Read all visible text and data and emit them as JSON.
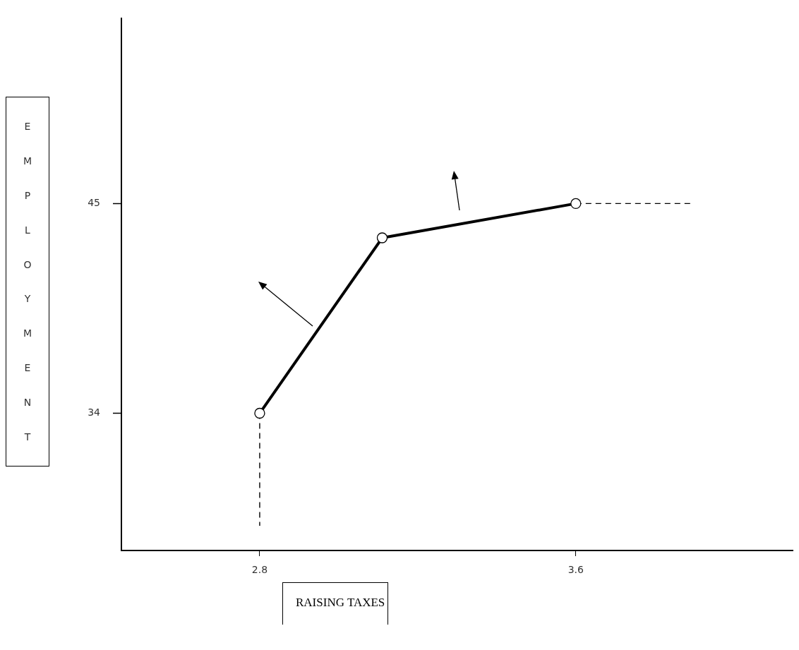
{
  "chart_data": {
    "type": "line",
    "xlabel": "RAISING TAXES",
    "ylabel": "EMPLOYMENT",
    "xlim": [
      2.45,
      4.15
    ],
    "ylim": [
      26.8,
      54.7
    ],
    "xticks": [
      2.8,
      3.6
    ],
    "yticks": [
      34,
      45
    ],
    "grid": false,
    "legend": false,
    "series": [
      {
        "x": [
          2.8,
          3.11,
          3.6
        ],
        "values": [
          34,
          43.2,
          45
        ],
        "color": "#000000",
        "marker": "circle",
        "line_style": "solid"
      },
      {
        "x": [
          2.8,
          2.8
        ],
        "values": [
          34,
          28.1
        ],
        "color": "#000000",
        "marker": "none",
        "line_style": "dashed"
      },
      {
        "x": [
          3.6,
          3.89
        ],
        "values": [
          45,
          45
        ],
        "color": "#000000",
        "marker": "none",
        "line_style": "dashed"
      }
    ]
  }
}
